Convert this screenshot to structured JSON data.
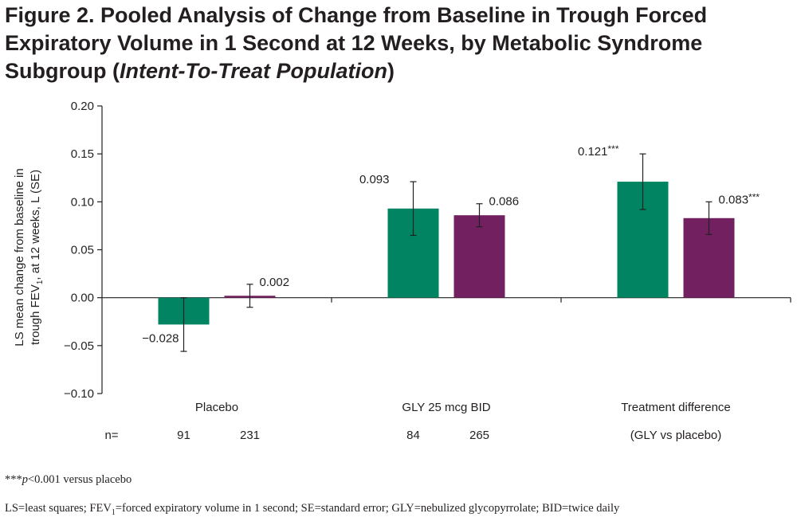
{
  "title": {
    "main": "Figure 2. Pooled Analysis of Change from Baseline in Trough Forced Expiratory Volume in 1 Second at 12 Weeks, by Metabolic Syndrome Subgroup (",
    "italic": "Intent-To-Treat Population",
    "close": ")"
  },
  "chart_data": {
    "type": "bar",
    "ylabel_line1": "LS mean change from baseline in",
    "ylabel_line2_pre": "trough FEV",
    "ylabel_line2_sub": "1",
    "ylabel_line2_post": ", at 12 weeks, L (SE)",
    "ylim": [
      -0.1,
      0.2
    ],
    "yticks": [
      "0.20",
      "0.15",
      "0.10",
      "0.05",
      "0.00",
      "−0.05",
      "−0.10"
    ],
    "ytick_values": [
      0.2,
      0.15,
      0.1,
      0.05,
      0.0,
      -0.05,
      -0.1
    ],
    "grid": false,
    "groups": [
      {
        "label": "Placebo",
        "n_label": "",
        "bars": [
          {
            "value": -0.028,
            "se": 0.028,
            "label": "−0.028",
            "color": "#008461",
            "n": "91"
          },
          {
            "value": 0.002,
            "se": 0.012,
            "label": "0.002",
            "color": "#722060",
            "n": "231"
          }
        ]
      },
      {
        "label": "GLY 25 mcg BID",
        "n_label": "",
        "bars": [
          {
            "value": 0.093,
            "se": 0.028,
            "label": "0.093",
            "color": "#008461",
            "n": "84"
          },
          {
            "value": 0.086,
            "se": 0.012,
            "label": "0.086",
            "color": "#722060",
            "n": "265"
          }
        ]
      },
      {
        "label": "Treatment difference",
        "n_label": "(GLY vs placebo)",
        "bars": [
          {
            "value": 0.121,
            "se": 0.029,
            "label": "0.121***",
            "color": "#008461",
            "n": ""
          },
          {
            "value": 0.083,
            "se": 0.017,
            "label": "0.083***",
            "color": "#722060",
            "n": ""
          }
        ]
      }
    ],
    "n_prefix": "n="
  },
  "footnotes": {
    "sig_stars": "***",
    "sig_p": "p",
    "sig_rest": "<0.001 versus placebo",
    "abbr_pre": "LS=least squares; FEV",
    "abbr_sub": "1",
    "abbr_post": "=forced expiratory volume in 1 second; SE=standard error; GLY=nebulized glycopyrrolate; BID=twice daily"
  }
}
